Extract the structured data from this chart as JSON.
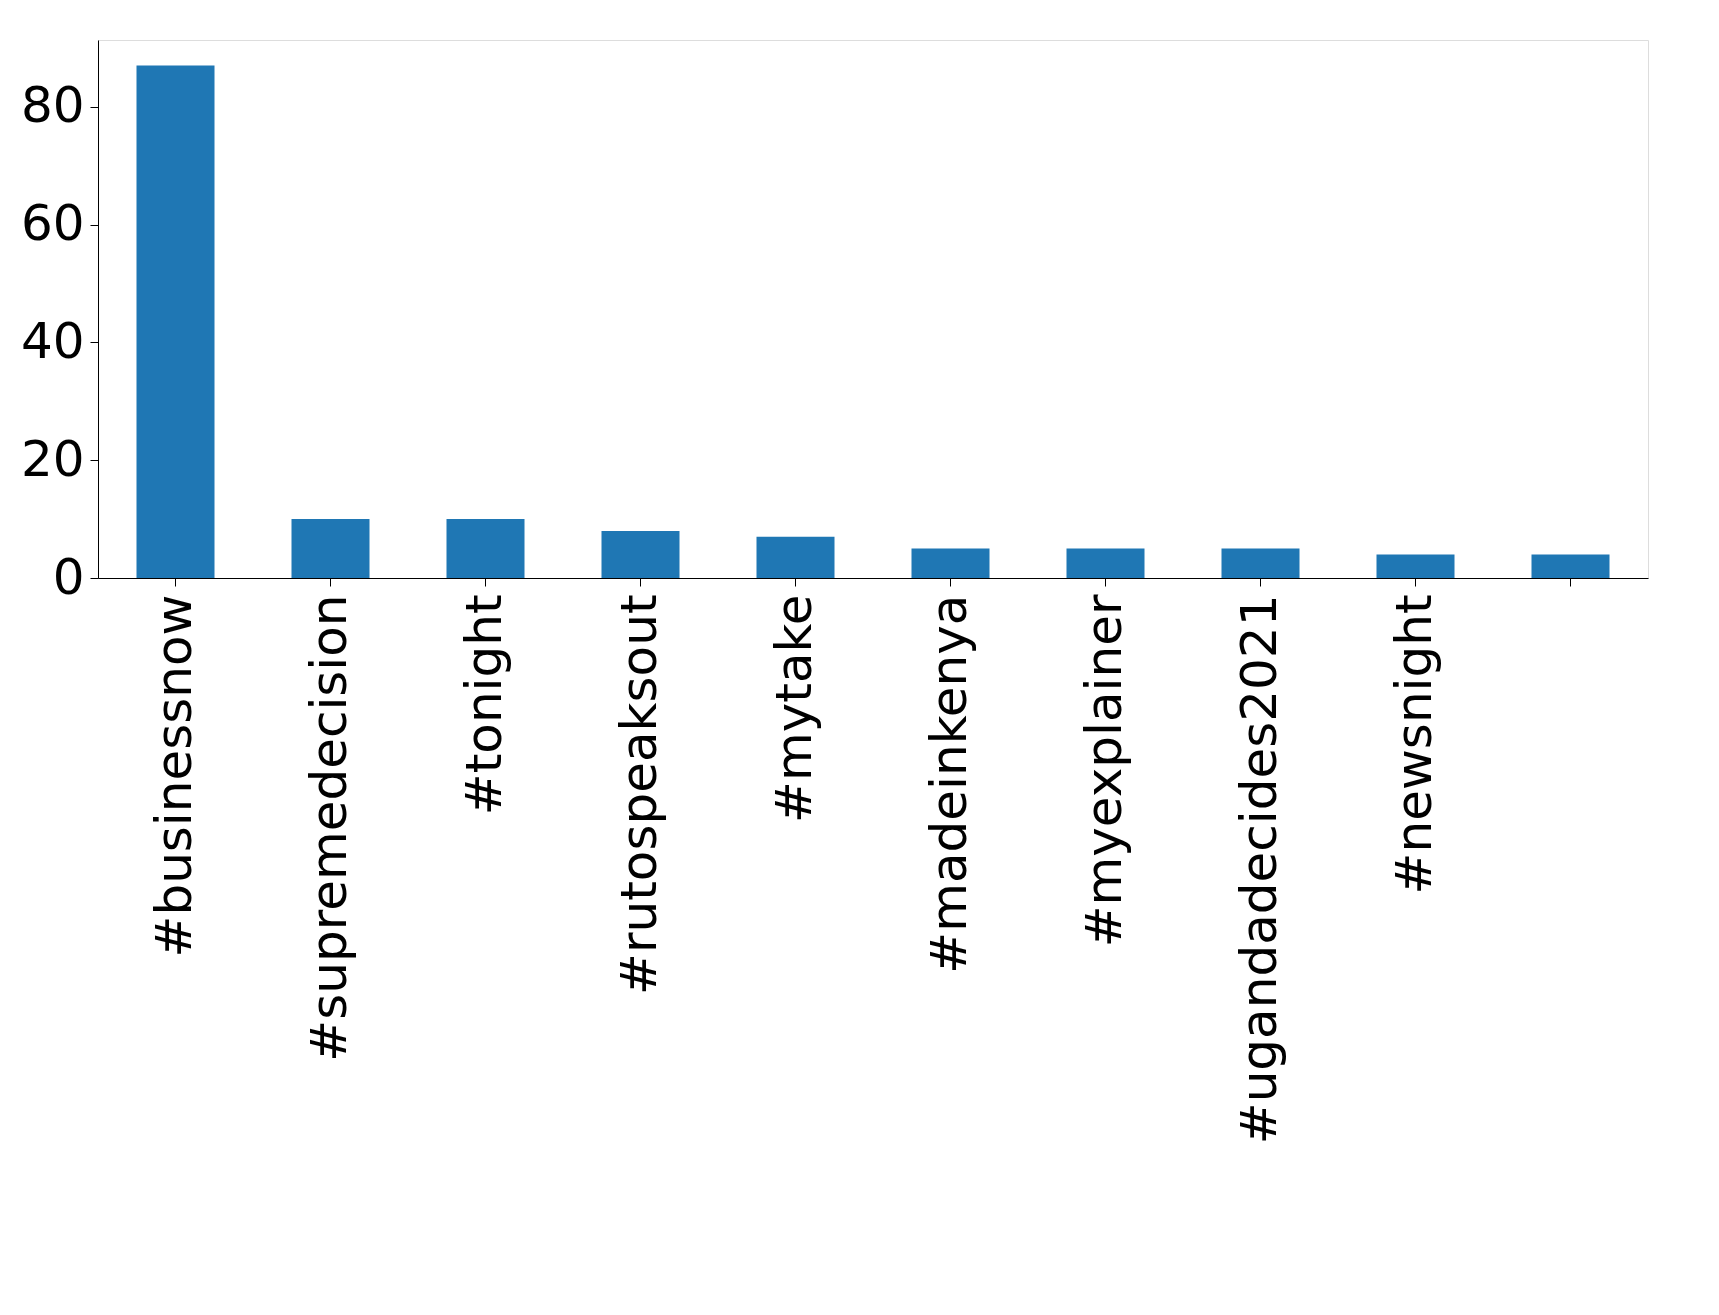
{
  "chart_data": {
    "type": "bar",
    "categories": [
      "#businessnow",
      "#supremedecision",
      "#tonight",
      "#rutospeaksout",
      "#mytake",
      "#madeinkenya",
      "#myexplainer",
      "#ugandadecides2021",
      "#newsnight",
      null
    ],
    "values": [
      87,
      10,
      10,
      8,
      7,
      5,
      5,
      5,
      4,
      4
    ],
    "color": "#1f77b4",
    "ylim": [
      0,
      91.35
    ],
    "yticks": [
      0,
      20,
      40,
      60,
      80
    ],
    "grid": false
  }
}
